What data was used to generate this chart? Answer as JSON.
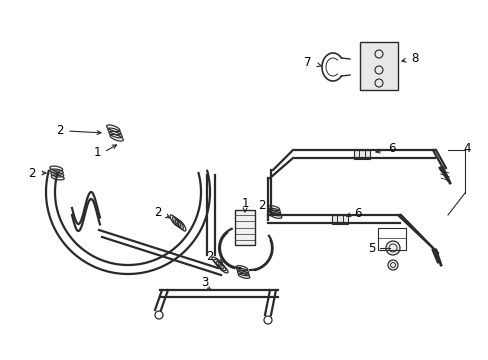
{
  "bg_color": "#ffffff",
  "line_color": "#2a2a2a",
  "text_color": "#000000",
  "figsize": [
    4.89,
    3.6
  ],
  "dpi": 100
}
